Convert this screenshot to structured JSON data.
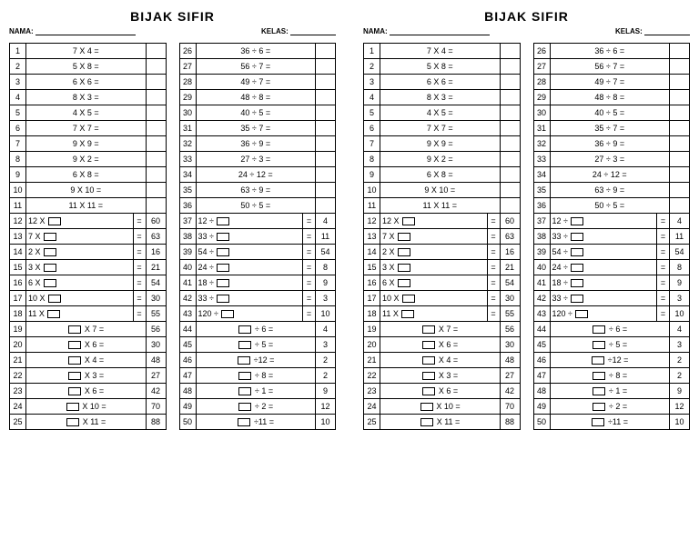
{
  "title": "BIJAK SIFIR",
  "labels": {
    "name": "NAMA:",
    "class": "KELAS:"
  },
  "colA": [
    {
      "n": 1,
      "type": "plain",
      "expr": "7 X 4 ="
    },
    {
      "n": 2,
      "type": "plain",
      "expr": "5 X 8 ="
    },
    {
      "n": 3,
      "type": "plain",
      "expr": "6 X 6 ="
    },
    {
      "n": 4,
      "type": "plain",
      "expr": "8 X 3 ="
    },
    {
      "n": 5,
      "type": "plain",
      "expr": "4 X 5 ="
    },
    {
      "n": 6,
      "type": "plain",
      "expr": "7 X 7 ="
    },
    {
      "n": 7,
      "type": "plain",
      "expr": "9 X 9 ="
    },
    {
      "n": 8,
      "type": "plain",
      "expr": "9 X 2 ="
    },
    {
      "n": 9,
      "type": "plain",
      "expr": "6 X 8 ="
    },
    {
      "n": 10,
      "type": "plain",
      "expr": "9 X 10 ="
    },
    {
      "n": 11,
      "type": "plain",
      "expr": "11 X 11 ="
    },
    {
      "n": 12,
      "type": "boxmid",
      "pre": "12 X",
      "post": "=",
      "ans": "60"
    },
    {
      "n": 13,
      "type": "boxmid",
      "pre": "7 X",
      "post": "=",
      "ans": "63"
    },
    {
      "n": 14,
      "type": "boxmid",
      "pre": "2 X",
      "post": "=",
      "ans": "16"
    },
    {
      "n": 15,
      "type": "boxmid",
      "pre": "3 X",
      "post": "=",
      "ans": "21"
    },
    {
      "n": 16,
      "type": "boxmid",
      "pre": "6 X",
      "post": "=",
      "ans": "54"
    },
    {
      "n": 17,
      "type": "boxmid",
      "pre": "10 X",
      "post": "=",
      "ans": "30"
    },
    {
      "n": 18,
      "type": "boxmid",
      "pre": "11 X",
      "post": "=",
      "ans": "55"
    },
    {
      "n": 19,
      "type": "boxpre",
      "post": "X 7 =",
      "ans": "56"
    },
    {
      "n": 20,
      "type": "boxpre",
      "post": "X 6 =",
      "ans": "30"
    },
    {
      "n": 21,
      "type": "boxpre",
      "post": "X 4 =",
      "ans": "48"
    },
    {
      "n": 22,
      "type": "boxpre",
      "post": "X 3 =",
      "ans": "27"
    },
    {
      "n": 23,
      "type": "boxpre",
      "post": "X 6 =",
      "ans": "42"
    },
    {
      "n": 24,
      "type": "boxpre",
      "post": "X 10 =",
      "ans": "70"
    },
    {
      "n": 25,
      "type": "boxpre",
      "post": "X 11 =",
      "ans": "88"
    }
  ],
  "colB": [
    {
      "n": 26,
      "type": "plain",
      "expr": "36 ÷ 6 ="
    },
    {
      "n": 27,
      "type": "plain",
      "expr": "56 ÷ 7 ="
    },
    {
      "n": 28,
      "type": "plain",
      "expr": "49 ÷ 7 ="
    },
    {
      "n": 29,
      "type": "plain",
      "expr": "48  ÷ 8 ="
    },
    {
      "n": 30,
      "type": "plain",
      "expr": "40 ÷ 5 ="
    },
    {
      "n": 31,
      "type": "plain",
      "expr": "35 ÷ 7 ="
    },
    {
      "n": 32,
      "type": "plain",
      "expr": "36 ÷ 9 ="
    },
    {
      "n": 33,
      "type": "plain",
      "expr": "27 ÷ 3 ="
    },
    {
      "n": 34,
      "type": "plain",
      "expr": "24 ÷ 12 ="
    },
    {
      "n": 35,
      "type": "plain",
      "expr": "63 ÷ 9 ="
    },
    {
      "n": 36,
      "type": "plain",
      "expr": "50 ÷ 5 ="
    },
    {
      "n": 37,
      "type": "boxmid",
      "pre": "12 ÷",
      "post": "=",
      "ans": "4"
    },
    {
      "n": 38,
      "type": "boxmid",
      "pre": "33 ÷",
      "post": "=",
      "ans": "11"
    },
    {
      "n": 39,
      "type": "boxmid",
      "pre": "54 ÷",
      "post": "=",
      "ans": "54"
    },
    {
      "n": 40,
      "type": "boxmid",
      "pre": "24 ÷",
      "post": "=",
      "ans": "8"
    },
    {
      "n": 41,
      "type": "boxmid",
      "pre": "18 ÷",
      "post": "=",
      "ans": "9"
    },
    {
      "n": 42,
      "type": "boxmid",
      "pre": "33 ÷",
      "post": "=",
      "ans": "3"
    },
    {
      "n": 43,
      "type": "boxmid",
      "pre": "120 ÷",
      "post": "=",
      "ans": "10"
    },
    {
      "n": 44,
      "type": "boxpre",
      "post": "÷ 6 =",
      "ans": "4"
    },
    {
      "n": 45,
      "type": "boxpre",
      "post": "÷ 5 =",
      "ans": "3"
    },
    {
      "n": 46,
      "type": "boxpre",
      "post": "÷12 =",
      "ans": "2"
    },
    {
      "n": 47,
      "type": "boxpre",
      "post": "÷ 8 =",
      "ans": "2"
    },
    {
      "n": 48,
      "type": "boxpre",
      "post": "÷ 1 =",
      "ans": "9"
    },
    {
      "n": 49,
      "type": "boxpre",
      "post": "÷ 2 =",
      "ans": "12"
    },
    {
      "n": 50,
      "type": "boxpre",
      "post": "÷11 =",
      "ans": "10"
    }
  ]
}
